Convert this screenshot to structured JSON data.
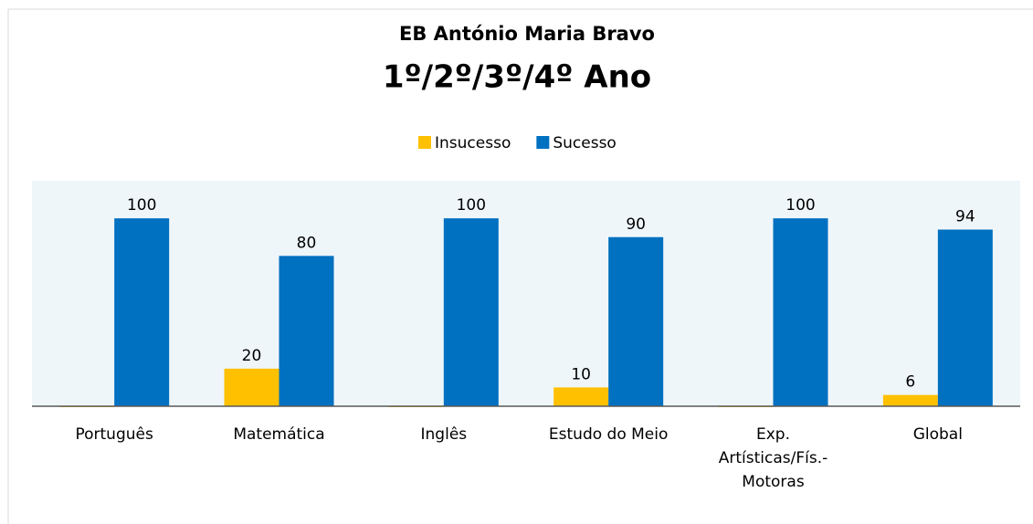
{
  "chart_data": {
    "type": "bar",
    "title": "EB António Maria Bravo",
    "subtitle": "1º/2º/3º/4º Ano",
    "categories": [
      "Português",
      "Matemática",
      "Inglês",
      "Estudo do Meio",
      "Exp. Artísticas/Fís.-Motoras",
      "Global"
    ],
    "series": [
      {
        "name": "Insucesso",
        "color": "#ffc000",
        "values": [
          0,
          20,
          0,
          10,
          0,
          6
        ]
      },
      {
        "name": "Sucesso",
        "color": "#0070c0",
        "values": [
          100,
          80,
          100,
          90,
          100,
          94
        ]
      }
    ],
    "ylim": [
      0,
      120
    ],
    "legend": "top"
  }
}
